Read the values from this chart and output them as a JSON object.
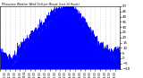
{
  "bg_color": "#ffffff",
  "line_color": "#0000ff",
  "fill_color": "#0000ff",
  "grid_color": "#888888",
  "ylim": [
    -10,
    50
  ],
  "yticks": [
    -10,
    -5,
    0,
    5,
    10,
    15,
    20,
    25,
    30,
    35,
    40,
    45,
    50
  ],
  "num_points": 1440,
  "seed": 42
}
